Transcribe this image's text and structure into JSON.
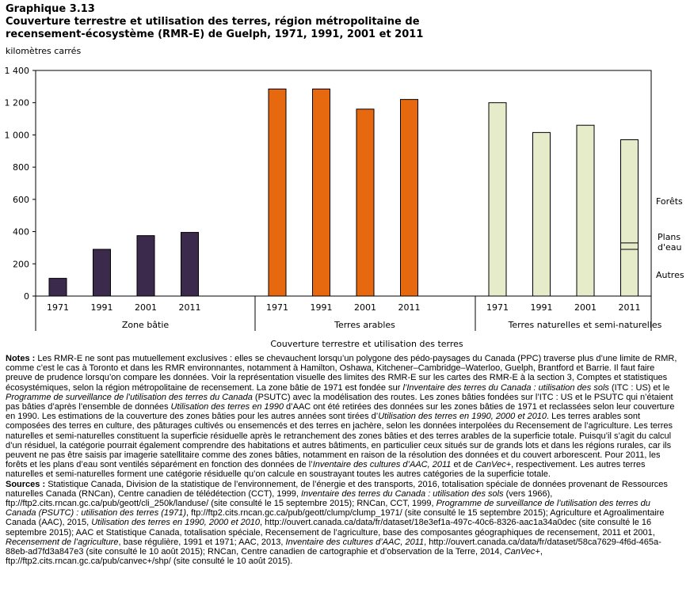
{
  "header": {
    "graph_number": "Graphique  3.13",
    "title_line1": "Couverture terrestre et utilisation des terres, région métropolitaine de",
    "title_line2": "recensement-écosystème (RMR-E) de Guelph, 1971, 1991, 2001 et 2011",
    "unit_label": "kilomètres carrés"
  },
  "colors": {
    "zone_batie": "#3b2a4b",
    "terres_arables": "#e6680f",
    "terres_naturelles": "#e6ecca",
    "bar_stroke": "#000000"
  },
  "chart_data": {
    "type": "bar",
    "title": "Couverture terrestre et utilisation des terres, région métropolitaine de recensement-écosystème (RMR-E) de Guelph, 1971, 1991, 2001 et 2011",
    "ylabel": "kilomètres carrés",
    "xlabel": "Couverture terrestre et utilisation des terres",
    "ylim": [
      0,
      1400
    ],
    "yticks": [
      0,
      200,
      400,
      600,
      800,
      1000,
      1200,
      1400
    ],
    "ytick_labels": [
      "0",
      "200",
      "400",
      "600",
      "800",
      "1 000",
      "1 200",
      "1 400"
    ],
    "groups": [
      {
        "name": "Zone bâtie",
        "categories": [
          "1971",
          "1991",
          "2001",
          "2011"
        ],
        "values": [
          110,
          290,
          375,
          395
        ],
        "color_key": "zone_batie"
      },
      {
        "name": "Terres arables",
        "categories": [
          "1971",
          "1991",
          "2001",
          "2011"
        ],
        "values": [
          1285,
          1285,
          1160,
          1220
        ],
        "color_key": "terres_arables"
      },
      {
        "name": "Terres naturelles et semi-naturelles",
        "categories": [
          "1971",
          "1991",
          "2001",
          "2011"
        ],
        "values": [
          1200,
          1015,
          1060,
          970
        ],
        "color_key": "terres_naturelles"
      }
    ],
    "stacked_2011_naturelles": [
      {
        "name": "Autres",
        "value": 290
      },
      {
        "name": "Plans d'eau",
        "value": 40
      },
      {
        "name": "Forêts",
        "value": 640
      }
    ],
    "annotations": [
      "Forêts",
      "Plans",
      "d'eau",
      "Autres"
    ],
    "grid": false
  },
  "notes": {
    "label": "Notes :",
    "p1": " Les RMR-E ne sont pas mutuellement exclusives : elles se chevauchent lorsqu’un polygone des pédo-paysages du Canada (PPC) traverse plus d’une limite de RMR, comme c’est le cas à Toronto et dans les RMR environnantes, notamment à Hamilton, Oshawa, Kitchener–Cambridge–Waterloo, Guelph, Brantford et Barrie. Il faut faire preuve de prudence lorsqu’on compare les données. Voir la représentation visuelle des limites des RMR-E sur les cartes des RMR-E à la section 3, Comptes et statistiques écosystémiques, selon la région métropolitaine de recensement. La zone bâtie de 1971 est fondée sur ",
    "i1": "l’Inventaire des terres du Canada : utilisation des sols",
    "p2": " (ITC : US) et le ",
    "i2": "Programme de surveillance de l’utilisation des terres du Canada",
    "p3": " (PSUTC) avec la modélisation des routes. Les zones bâties fondées sur l’ITC : US et le PSUTC qui n’étaient pas bâties d’après l’ensemble de données ",
    "i3": "Utilisation des terres en 1990",
    "p4": " d’AAC ont été retirées des données sur les zones bâties de 1971 et reclassées selon leur couverture en 1990. Les estimations de la couverture des zones bâties pour les autres années sont tirées d’",
    "i4": "Utilisation des terres en 1990, 2000 et 2010",
    "p5": ". Les terres arables sont composées des terres en culture, des pâturages cultivés ou ensemencés et des terres en jachère, selon les données interpolées du Recensement de l’agriculture. Les terres naturelles et semi-naturelles constituent la superficie résiduelle après le retranchement des zones bâties et des terres arables de la superficie totale. Puisqu’il s’agit du calcul d’un résiduel, la catégorie pourrait également comprendre des habitations et autres bâtiments, en particulier ceux situés sur de grands lots et dans les régions rurales, car ils peuvent ne pas être saisis par imagerie satellitaire comme des zones bâties, notamment en raison de la résolution des données et du couvert arborescent. Pour 2011, les forêts et les plans d’eau sont ventilés séparément en fonction des données de l’",
    "i5": "Inventaire des cultures d’AAC, 2011",
    "p6": " et de ",
    "i6": "CanVec+",
    "p7": ", respectivement. Les autres terres naturelles et semi-naturelles forment une catégorie résiduelle qu’on calcule en soustrayant toutes les autres catégories de la superficie totale."
  },
  "sources": {
    "label": "Sources :",
    "s1": " Statistique Canada, Division de la statistique de l’environnement, de l’énergie et des transports, 2016, totalisation spéciale de données provenant de Ressources naturelles Canada (RNCan), Centre canadien de télédétection (CCT), 1999, ",
    "i1": "Inventaire des terres du Canada : utilisation des sols",
    "s2": " (vers 1966), ftp://ftp2.cits.rncan.gc.ca/pub/geott/cli_250k/landuse/ (site consulté le 15 septembre 2015); RNCan, CCT, 1999, ",
    "i2": "Programme de surveillance de l’utilisation des terres du Canada (PSUTC) : utilisation des terres (1971)",
    "s3": ", ftp://ftp2.cits.rncan.gc.ca/pub/geott/clump/clump_1971/ (site consulté le 15 septembre 2015); Agriculture et Agroalimentaire Canada (AAC), 2015, ",
    "i3": "Utilisation des terres en 1990, 2000 et 2010",
    "s4": ", http://ouvert.canada.ca/data/fr/dataset/18e3ef1a-497c-40c6-8326-aac1a34a0dec (site consulté le 16 septembre 2015); AAC et Statistique Canada, totalisation spéciale, Recensement de l’agriculture, base des composantes géographiques de recensement, 2011 et 2001, ",
    "i4": "Recensement de l’agriculture",
    "s5": ", base régulière, 1991 et 1971; AAC, 2013, ",
    "i5": "Inventaire des cultures d’AAC, 2011",
    "s6": ", http://ouvert.canada.ca/data/fr/dataset/58ca7629-4f6d-465a-88eb-ad7fd3a847e3 (site consulté le 10 août 2015); RNCan, Centre canadien de cartographie et d’observation de la Terre, 2014, ",
    "i6": "CanVec+",
    "s7": ", ftp://ftp2.cits.rncan.gc.ca/pub/canvec+/shp/ (site consulté le 10 août 2015)."
  }
}
